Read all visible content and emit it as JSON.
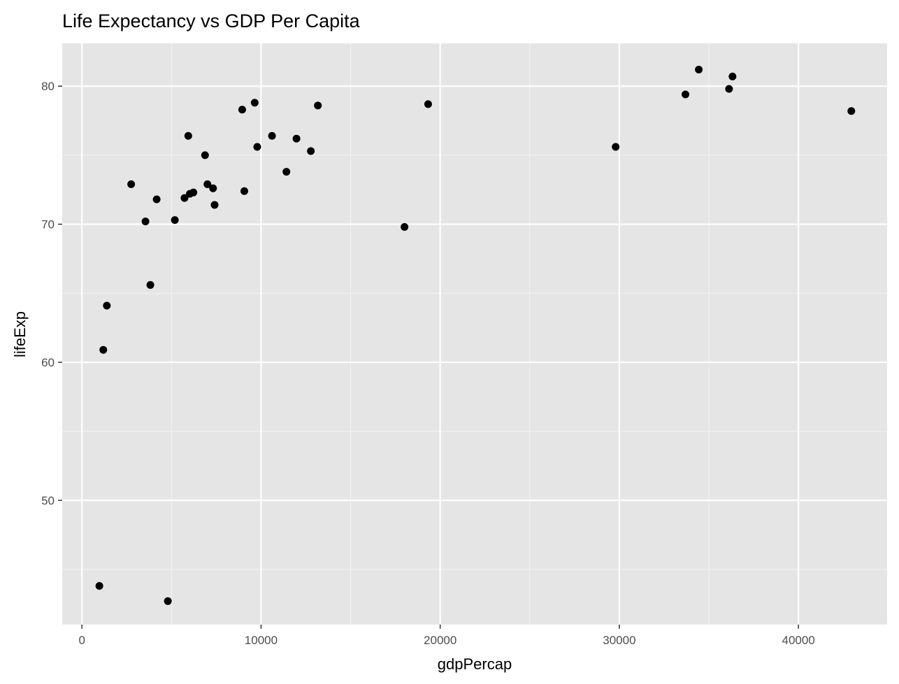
{
  "colors": {
    "panel_background": "#e5e5e5",
    "grid_major": "#ffffff",
    "grid_minor": "#f2f2f2",
    "point": "#000000",
    "tick_text": "#4d4d4d",
    "axis_tick": "#333333"
  },
  "chart_data": {
    "type": "scatter",
    "title": "Life Expectancy vs GDP Per Capita",
    "xlabel": "gdpPercap",
    "ylabel": "lifeExp",
    "xlim": [
      -1100,
      44950
    ],
    "ylim": [
      41.0,
      83.1
    ],
    "x_ticks": [
      0,
      10000,
      20000,
      30000,
      40000
    ],
    "x_tick_labels": [
      "0",
      "10000",
      "20000",
      "30000",
      "40000"
    ],
    "x_minor": [
      5000,
      15000,
      25000,
      35000
    ],
    "y_ticks": [
      50,
      60,
      70,
      80
    ],
    "y_tick_labels": [
      "50",
      "60",
      "70",
      "80"
    ],
    "y_minor": [
      45,
      55,
      65,
      75
    ],
    "grid": true,
    "legend": "none",
    "points": [
      {
        "x": 974,
        "y": 43.8
      },
      {
        "x": 4797,
        "y": 42.7
      },
      {
        "x": 1193,
        "y": 60.9
      },
      {
        "x": 1391,
        "y": 64.1
      },
      {
        "x": 2749,
        "y": 72.9
      },
      {
        "x": 3548,
        "y": 70.2
      },
      {
        "x": 3820,
        "y": 65.6
      },
      {
        "x": 4173,
        "y": 71.8
      },
      {
        "x": 5187,
        "y": 70.3
      },
      {
        "x": 5728,
        "y": 71.9
      },
      {
        "x": 5937,
        "y": 76.4
      },
      {
        "x": 6025,
        "y": 72.2
      },
      {
        "x": 6223,
        "y": 72.3
      },
      {
        "x": 6873,
        "y": 75.0
      },
      {
        "x": 7006,
        "y": 72.9
      },
      {
        "x": 7320,
        "y": 72.6
      },
      {
        "x": 7408,
        "y": 71.4
      },
      {
        "x": 8948,
        "y": 78.3
      },
      {
        "x": 9066,
        "y": 72.4
      },
      {
        "x": 9645,
        "y": 78.8
      },
      {
        "x": 9787,
        "y": 75.6
      },
      {
        "x": 10611,
        "y": 76.4
      },
      {
        "x": 11416,
        "y": 73.8
      },
      {
        "x": 11978,
        "y": 76.2
      },
      {
        "x": 12779,
        "y": 75.3
      },
      {
        "x": 13172,
        "y": 78.6
      },
      {
        "x": 18009,
        "y": 69.8
      },
      {
        "x": 19328,
        "y": 78.7
      },
      {
        "x": 29796,
        "y": 75.6
      },
      {
        "x": 33692,
        "y": 79.4
      },
      {
        "x": 34435,
        "y": 81.2
      },
      {
        "x": 36126,
        "y": 79.8
      },
      {
        "x": 36319,
        "y": 80.7
      },
      {
        "x": 42952,
        "y": 78.2
      }
    ]
  }
}
